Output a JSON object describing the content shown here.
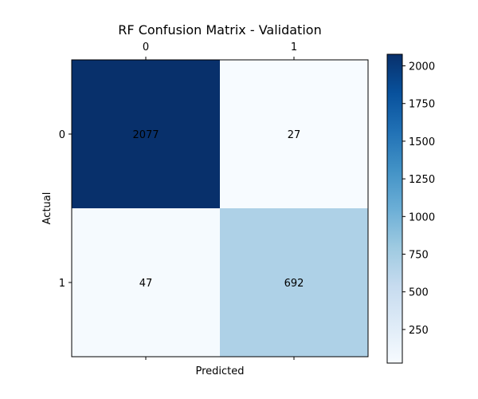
{
  "chart_data": {
    "type": "heatmap",
    "title": "RF Confusion Matrix - Validation",
    "xlabel": "Predicted",
    "ylabel": "Actual",
    "x_categories": [
      "0",
      "1"
    ],
    "y_categories": [
      "0",
      "1"
    ],
    "values": [
      [
        2077,
        27
      ],
      [
        47,
        692
      ]
    ],
    "colormap": "Blues",
    "colorbar": {
      "range": [
        27,
        2077
      ],
      "ticks": [
        250,
        500,
        750,
        1000,
        1250,
        1500,
        1750,
        2000
      ],
      "tick_labels": [
        "250",
        "500",
        "750",
        "1000",
        "1250",
        "1500",
        "1750",
        "2000"
      ]
    },
    "x_tick_position": "top",
    "legend": "colorbar-right",
    "grid": false
  }
}
